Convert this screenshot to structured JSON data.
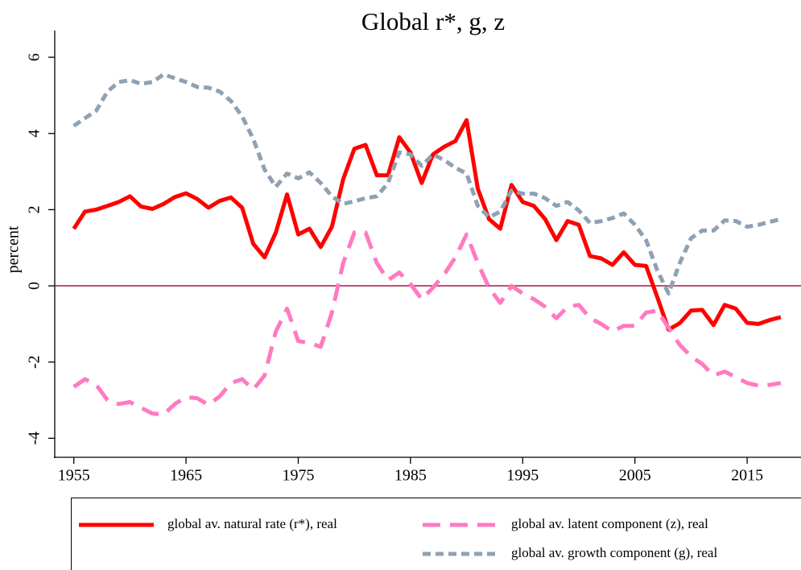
{
  "chart_data": {
    "type": "line",
    "title": "Global r*, g, z",
    "y_label": "percent",
    "x": [
      1955,
      1956,
      1957,
      1958,
      1959,
      1960,
      1961,
      1962,
      1963,
      1964,
      1965,
      1966,
      1967,
      1968,
      1969,
      1970,
      1971,
      1972,
      1973,
      1974,
      1975,
      1976,
      1977,
      1978,
      1979,
      1980,
      1981,
      1982,
      1983,
      1984,
      1985,
      1986,
      1987,
      1988,
      1989,
      1990,
      1991,
      1992,
      1993,
      1994,
      1995,
      1996,
      1997,
      1998,
      1999,
      2000,
      2001,
      2002,
      2003,
      2004,
      2005,
      2006,
      2007,
      2008,
      2009,
      2010,
      2011,
      2012,
      2013,
      2014,
      2015,
      2016,
      2017,
      2018
    ],
    "series": [
      {
        "name": "global av. natural rate (r*), real",
        "color": "#ff0000",
        "dash": "solid",
        "values": [
          1.5,
          1.95,
          2.0,
          2.1,
          2.2,
          2.35,
          2.08,
          2.02,
          2.15,
          2.33,
          2.43,
          2.28,
          2.05,
          2.23,
          2.32,
          2.05,
          1.1,
          0.75,
          1.4,
          2.4,
          1.35,
          1.5,
          1.02,
          1.55,
          2.8,
          3.6,
          3.7,
          2.9,
          2.9,
          3.9,
          3.5,
          2.7,
          3.45,
          3.65,
          3.8,
          4.35,
          2.55,
          1.75,
          1.5,
          2.65,
          2.2,
          2.1,
          1.75,
          1.2,
          1.7,
          1.6,
          0.78,
          0.72,
          0.55,
          0.88,
          0.55,
          0.52,
          -0.3,
          -1.15,
          -0.98,
          -0.65,
          -0.63,
          -1.03,
          -0.5,
          -0.6,
          -0.97,
          -1.0,
          -0.9,
          -0.82
        ]
      },
      {
        "name": "global av. latent component (z), real",
        "color": "#ff7ac0",
        "dash": "long",
        "values": [
          -2.65,
          -2.45,
          -2.6,
          -3.0,
          -3.1,
          -3.05,
          -3.2,
          -3.35,
          -3.38,
          -3.1,
          -2.92,
          -2.95,
          -3.12,
          -2.9,
          -2.55,
          -2.45,
          -2.72,
          -2.35,
          -1.2,
          -0.6,
          -1.45,
          -1.5,
          -1.6,
          -0.7,
          0.6,
          1.4,
          1.4,
          0.6,
          0.15,
          0.35,
          0.05,
          -0.35,
          -0.05,
          0.3,
          0.75,
          1.35,
          0.6,
          -0.05,
          -0.45,
          0.0,
          -0.2,
          -0.35,
          -0.55,
          -0.85,
          -0.55,
          -0.5,
          -0.85,
          -1.0,
          -1.2,
          -1.05,
          -1.05,
          -0.7,
          -0.65,
          -1.1,
          -1.55,
          -1.85,
          -2.05,
          -2.35,
          -2.25,
          -2.4,
          -2.55,
          -2.62,
          -2.6,
          -2.55
        ]
      },
      {
        "name": "global av. growth component (g), real",
        "color": "#8fa1b3",
        "dash": "short",
        "values": [
          4.2,
          4.4,
          4.6,
          5.1,
          5.35,
          5.4,
          5.3,
          5.35,
          5.55,
          5.45,
          5.35,
          5.22,
          5.2,
          5.1,
          4.85,
          4.45,
          3.85,
          3.05,
          2.6,
          2.95,
          2.82,
          2.98,
          2.7,
          2.35,
          2.15,
          2.22,
          2.3,
          2.35,
          2.7,
          3.5,
          3.45,
          3.15,
          3.45,
          3.3,
          3.1,
          2.95,
          2.1,
          1.8,
          1.95,
          2.5,
          2.42,
          2.42,
          2.3,
          2.1,
          2.2,
          1.98,
          1.65,
          1.7,
          1.78,
          1.9,
          1.6,
          1.2,
          0.4,
          -0.2,
          0.6,
          1.25,
          1.45,
          1.45,
          1.72,
          1.7,
          1.55,
          1.6,
          1.68,
          1.75
        ]
      }
    ],
    "xlim": [
      1953.3,
      2019.8
    ],
    "xticks": [
      1955,
      1965,
      1975,
      1985,
      1995,
      2005,
      2015
    ],
    "ylim": [
      -4.5,
      6.7
    ],
    "yticks": [
      -4,
      -2,
      0,
      2,
      4,
      6
    ],
    "reference_line": {
      "value": 0,
      "color": "#a3164a"
    }
  }
}
